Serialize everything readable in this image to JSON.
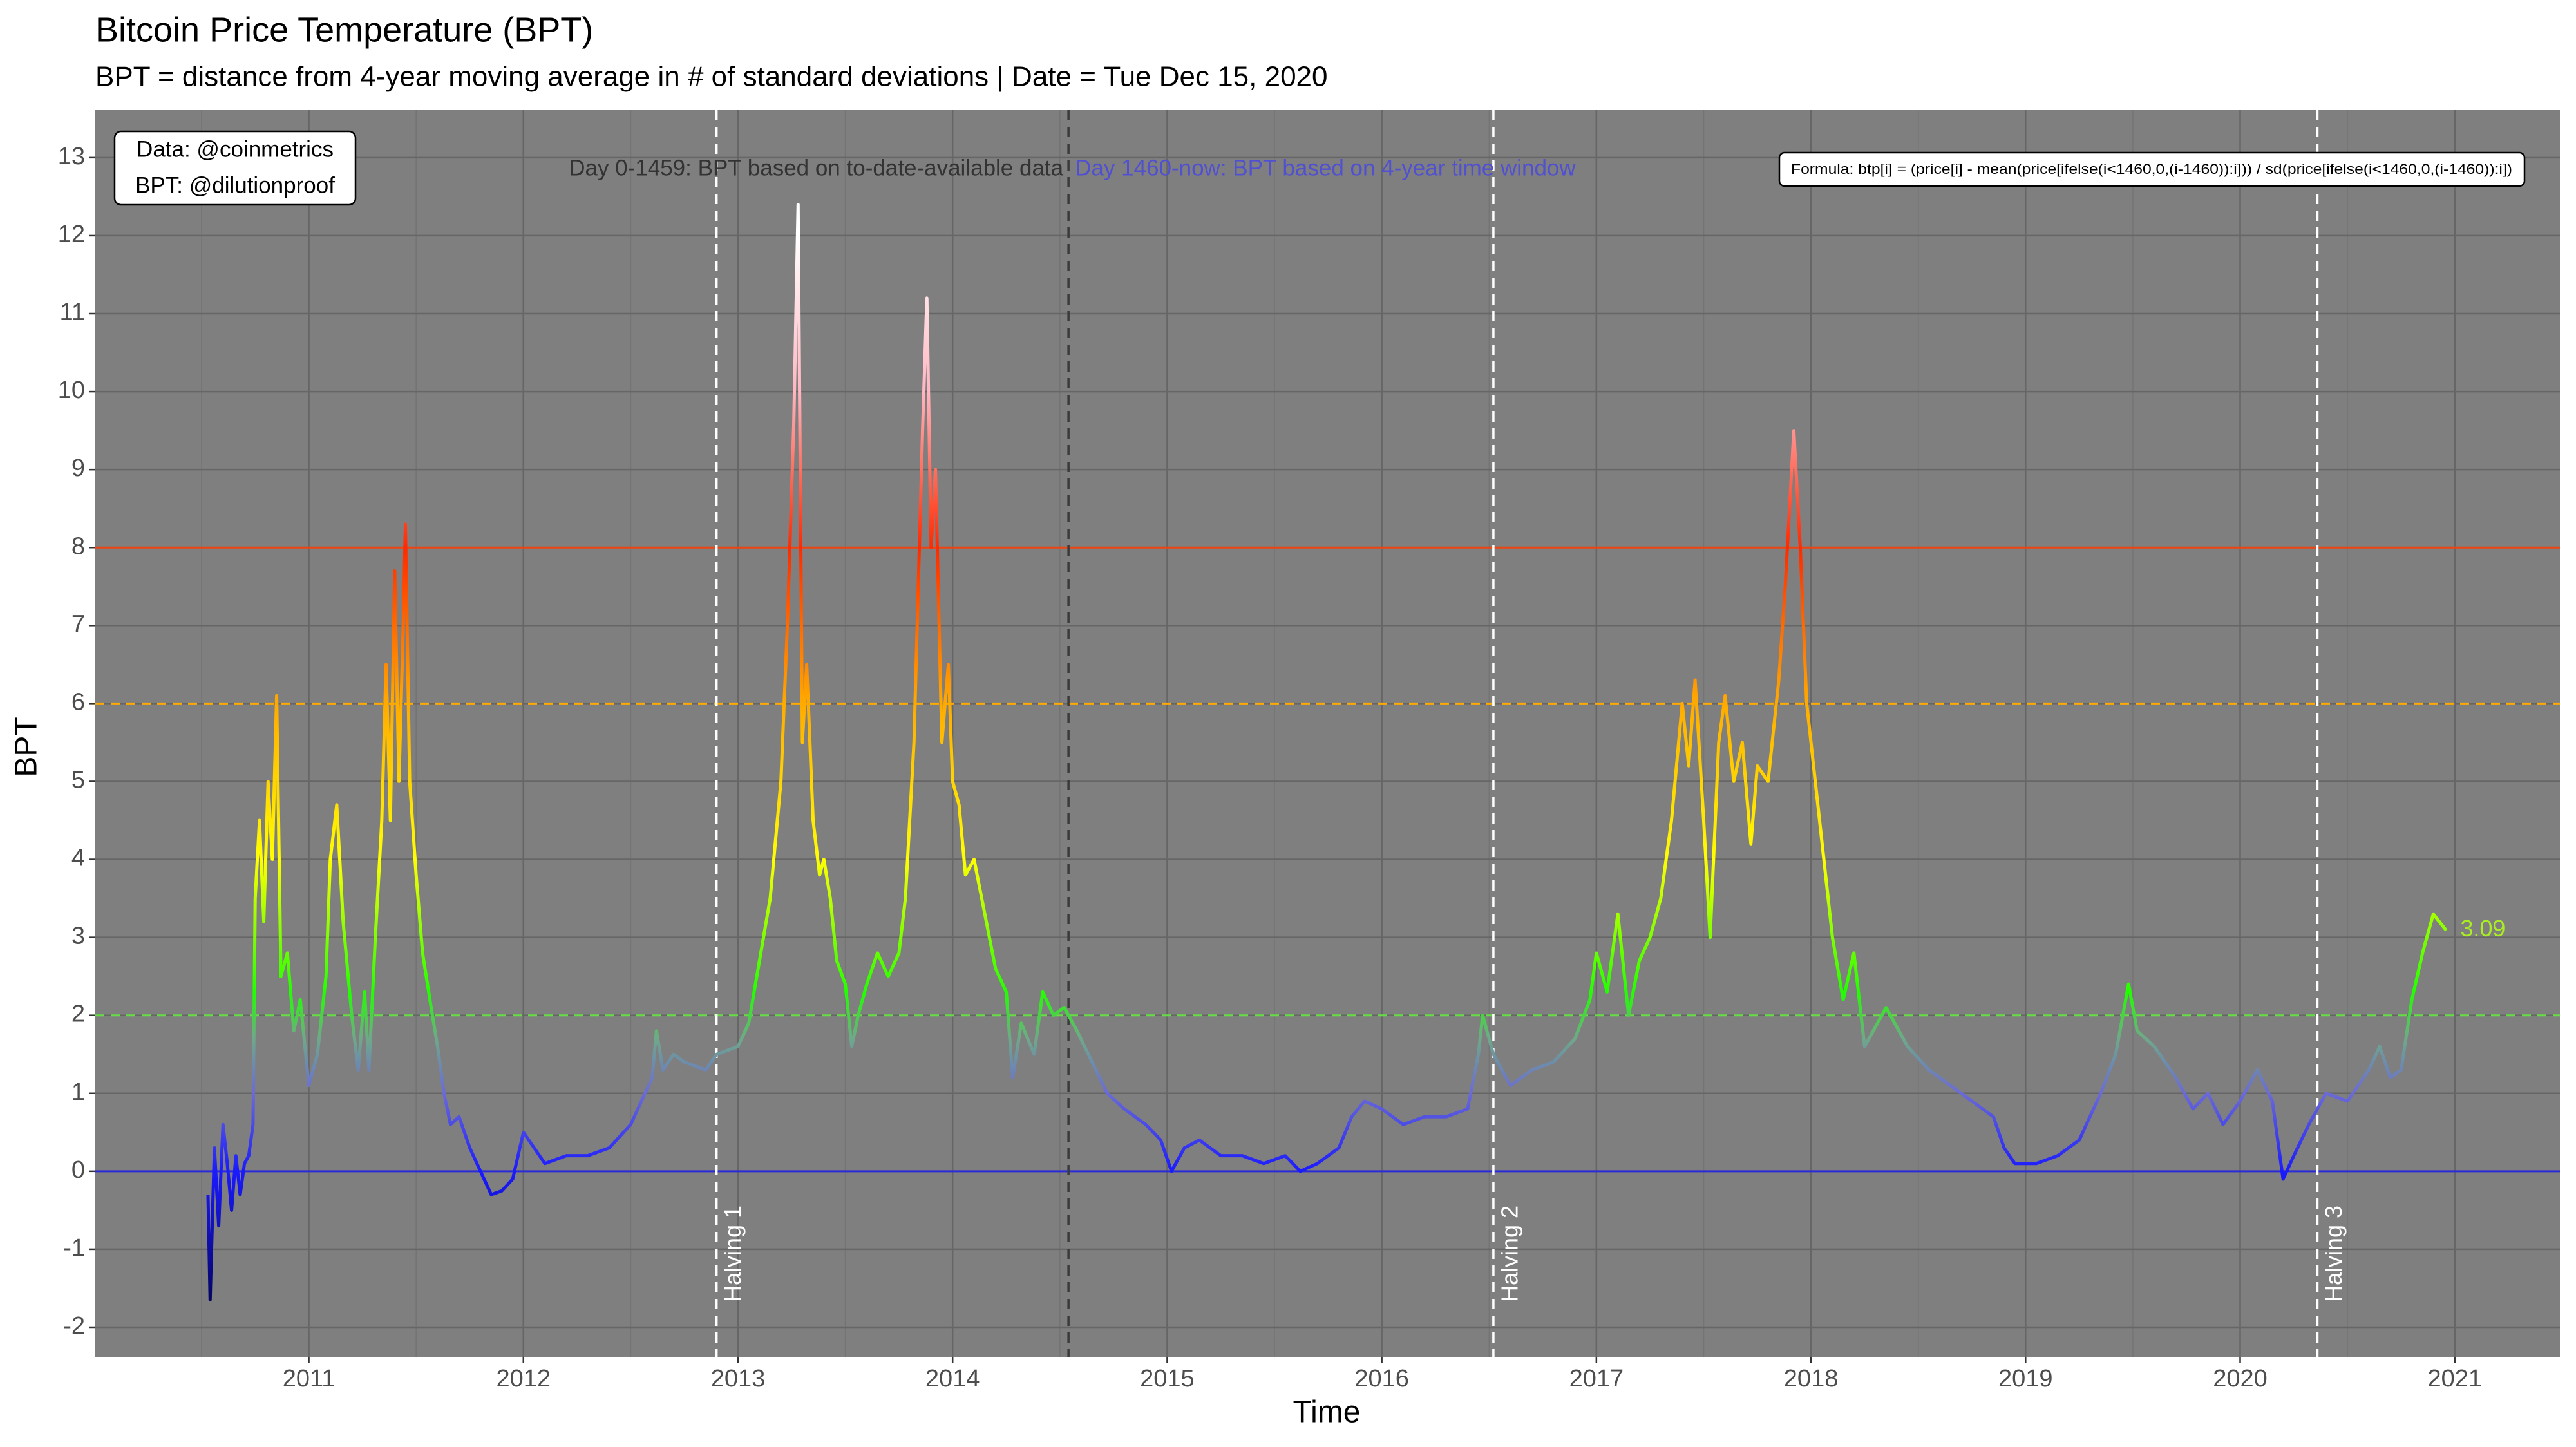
{
  "chart_data": {
    "type": "line",
    "title": "Bitcoin Price Temperature (BPT)",
    "subtitle": "BPT = distance from 4-year moving average in # of standard deviations | Date = Tue Dec 15, 2020",
    "x_label": "Time",
    "y_label": "BPT",
    "xlim": [
      2010.005,
      2021.49
    ],
    "ylim": [
      -2.38,
      13.61
    ],
    "xticks": [
      2011,
      2012,
      2013,
      2014,
      2015,
      2016,
      2017,
      2018,
      2019,
      2020,
      2021
    ],
    "yticks": [
      -2,
      -1,
      0,
      1,
      2,
      3,
      4,
      5,
      6,
      7,
      8,
      9,
      10,
      11,
      12,
      13
    ],
    "grid": true,
    "background": "#7f7f7f",
    "color_scale": [
      {
        "value": -2,
        "color": "#000044"
      },
      {
        "value": 0,
        "color": "#1a1aff"
      },
      {
        "value": 1,
        "color": "#6b6bd6"
      },
      {
        "value": 1.7,
        "color": "#6fa88a"
      },
      {
        "value": 2.3,
        "color": "#22ff00"
      },
      {
        "value": 4,
        "color": "#ffff00"
      },
      {
        "value": 6,
        "color": "#ffaa00"
      },
      {
        "value": 8,
        "color": "#ff2a00"
      },
      {
        "value": 10,
        "color": "#ffb6c1"
      },
      {
        "value": 12,
        "color": "#ffffff"
      }
    ],
    "x": [
      2010.53,
      2010.54,
      2010.56,
      2010.58,
      2010.6,
      2010.62,
      2010.64,
      2010.66,
      2010.68,
      2010.7,
      2010.72,
      2010.74,
      2010.75,
      2010.77,
      2010.79,
      2010.81,
      2010.83,
      2010.85,
      2010.87,
      2010.9,
      2010.93,
      2010.96,
      2011.0,
      2011.04,
      2011.08,
      2011.1,
      2011.13,
      2011.16,
      2011.2,
      2011.23,
      2011.26,
      2011.28,
      2011.31,
      2011.34,
      2011.36,
      2011.38,
      2011.4,
      2011.42,
      2011.44,
      2011.45,
      2011.47,
      2011.5,
      2011.53,
      2011.57,
      2011.6,
      2011.63,
      2011.66,
      2011.7,
      2011.75,
      2011.8,
      2011.85,
      2011.9,
      2011.95,
      2012.0,
      2012.05,
      2012.1,
      2012.2,
      2012.3,
      2012.4,
      2012.5,
      2012.55,
      2012.6,
      2012.62,
      2012.65,
      2012.7,
      2012.75,
      2012.85,
      2012.9,
      2013.0,
      2013.05,
      2013.1,
      2013.15,
      2013.2,
      2013.23,
      2013.26,
      2013.28,
      2013.3,
      2013.32,
      2013.35,
      2013.38,
      2013.4,
      2013.43,
      2013.46,
      2013.5,
      2013.53,
      2013.56,
      2013.6,
      2013.65,
      2013.7,
      2013.75,
      2013.78,
      2013.82,
      2013.86,
      2013.88,
      2013.9,
      2013.92,
      2013.95,
      2013.98,
      2014.0,
      2014.03,
      2014.06,
      2014.1,
      2014.15,
      2014.2,
      2014.25,
      2014.28,
      2014.32,
      2014.38,
      2014.42,
      2014.47,
      2014.52,
      2014.58,
      2014.65,
      2014.72,
      2014.8,
      2014.9,
      2014.97,
      2015.02,
      2015.08,
      2015.15,
      2015.25,
      2015.35,
      2015.45,
      2015.55,
      2015.62,
      2015.7,
      2015.8,
      2015.86,
      2015.92,
      2016.0,
      2016.1,
      2016.2,
      2016.3,
      2016.4,
      2016.45,
      2016.47,
      2016.52,
      2016.6,
      2016.7,
      2016.8,
      2016.9,
      2016.97,
      2017.0,
      2017.05,
      2017.1,
      2017.15,
      2017.2,
      2017.25,
      2017.3,
      2017.35,
      2017.4,
      2017.43,
      2017.46,
      2017.5,
      2017.53,
      2017.57,
      2017.6,
      2017.64,
      2017.68,
      2017.72,
      2017.75,
      2017.8,
      2017.85,
      2017.88,
      2017.92,
      2017.95,
      2017.98,
      2018.02,
      2018.06,
      2018.1,
      2018.15,
      2018.2,
      2018.25,
      2018.35,
      2018.45,
      2018.55,
      2018.65,
      2018.75,
      2018.85,
      2018.9,
      2018.95,
      2019.05,
      2019.15,
      2019.25,
      2019.35,
      2019.42,
      2019.48,
      2019.52,
      2019.6,
      2019.7,
      2019.78,
      2019.85,
      2019.92,
      2020.0,
      2020.08,
      2020.15,
      2020.2,
      2020.25,
      2020.32,
      2020.4,
      2020.5,
      2020.6,
      2020.65,
      2020.7,
      2020.75,
      2020.8,
      2020.85,
      2020.9,
      2020.96
    ],
    "values": [
      -0.3,
      -1.65,
      0.3,
      -0.7,
      0.6,
      0.1,
      -0.5,
      0.2,
      -0.3,
      0.1,
      0.2,
      0.6,
      3.5,
      4.5,
      3.2,
      5.0,
      4.0,
      6.1,
      2.5,
      2.8,
      1.8,
      2.2,
      1.1,
      1.5,
      2.5,
      4.0,
      4.7,
      3.2,
      2.0,
      1.3,
      2.3,
      1.3,
      3.0,
      4.5,
      6.5,
      4.5,
      7.7,
      5.0,
      7.0,
      8.3,
      5.0,
      3.8,
      2.8,
      2.1,
      1.6,
      1.0,
      0.6,
      0.7,
      0.3,
      0.0,
      -0.3,
      -0.25,
      -0.1,
      0.5,
      0.3,
      0.1,
      0.2,
      0.2,
      0.3,
      0.6,
      0.9,
      1.2,
      1.8,
      1.3,
      1.5,
      1.4,
      1.3,
      1.5,
      1.6,
      1.9,
      2.7,
      3.5,
      5.0,
      7.0,
      9.6,
      12.4,
      5.5,
      6.5,
      4.5,
      3.8,
      4.0,
      3.5,
      2.7,
      2.4,
      1.6,
      2.0,
      2.4,
      2.8,
      2.5,
      2.8,
      3.5,
      5.5,
      9.5,
      11.2,
      8.0,
      9.0,
      5.5,
      6.5,
      5.0,
      4.7,
      3.8,
      4.0,
      3.3,
      2.6,
      2.3,
      1.2,
      1.9,
      1.5,
      2.3,
      2.0,
      2.1,
      1.8,
      1.4,
      1.0,
      0.8,
      0.6,
      0.4,
      0.0,
      0.3,
      0.4,
      0.2,
      0.2,
      0.1,
      0.2,
      0.0,
      0.1,
      0.3,
      0.7,
      0.9,
      0.8,
      0.6,
      0.7,
      0.7,
      0.8,
      1.5,
      2.0,
      1.5,
      1.1,
      1.3,
      1.4,
      1.7,
      2.2,
      2.8,
      2.3,
      3.3,
      2.0,
      2.7,
      3.0,
      3.5,
      4.5,
      6.0,
      5.2,
      6.3,
      4.5,
      3.0,
      5.5,
      6.1,
      5.0,
      5.5,
      4.2,
      5.2,
      5.0,
      6.3,
      7.5,
      9.5,
      8.0,
      6.0,
      5.0,
      4.0,
      3.0,
      2.2,
      2.8,
      1.6,
      2.1,
      1.6,
      1.3,
      1.1,
      0.9,
      0.7,
      0.3,
      0.1,
      0.1,
      0.2,
      0.4,
      1.0,
      1.5,
      2.4,
      1.8,
      1.6,
      1.2,
      0.8,
      1.0,
      0.6,
      0.9,
      1.3,
      0.9,
      -0.1,
      0.2,
      0.6,
      1.0,
      0.9,
      1.3,
      1.6,
      1.2,
      1.3,
      2.2,
      2.8,
      3.3,
      3.09
    ],
    "end_label_color": "#aaee22",
    "hlines": [
      {
        "value": 0,
        "color": "#2a2ad8",
        "dashed": false
      },
      {
        "value": 2,
        "color": "#66dd44",
        "dashed": true
      },
      {
        "value": 6,
        "color": "#ffaa00",
        "dashed": true
      },
      {
        "value": 8,
        "color": "#ee4411",
        "dashed": false
      }
    ],
    "vlines": [
      {
        "value": 2012.9,
        "label": "Halving 1",
        "color": "#ffffff"
      },
      {
        "value": 2014.54,
        "color": "#3a3a3a"
      },
      {
        "value": 2016.52,
        "label": "Halving 2",
        "color": "#ffffff"
      },
      {
        "value": 2020.36,
        "label": "Halving 3",
        "color": "#ffffff"
      }
    ],
    "annotations": [
      {
        "text": "Day 0-1459: BPT based on to-date-available data",
        "color": "#333333"
      },
      {
        "text": "Day 1460-now: BPT based on 4-year time window",
        "color": "#5050d0"
      }
    ],
    "source_box": [
      "Data: @coinmetrics",
      "BPT: @dilutionproof"
    ],
    "formula": "Formula: btp[i] = (price[i] - mean(price[ifelse(i<1460,0,(i-1460)):i])) / sd(price[ifelse(i<1460,0,(i-1460)):i])"
  }
}
